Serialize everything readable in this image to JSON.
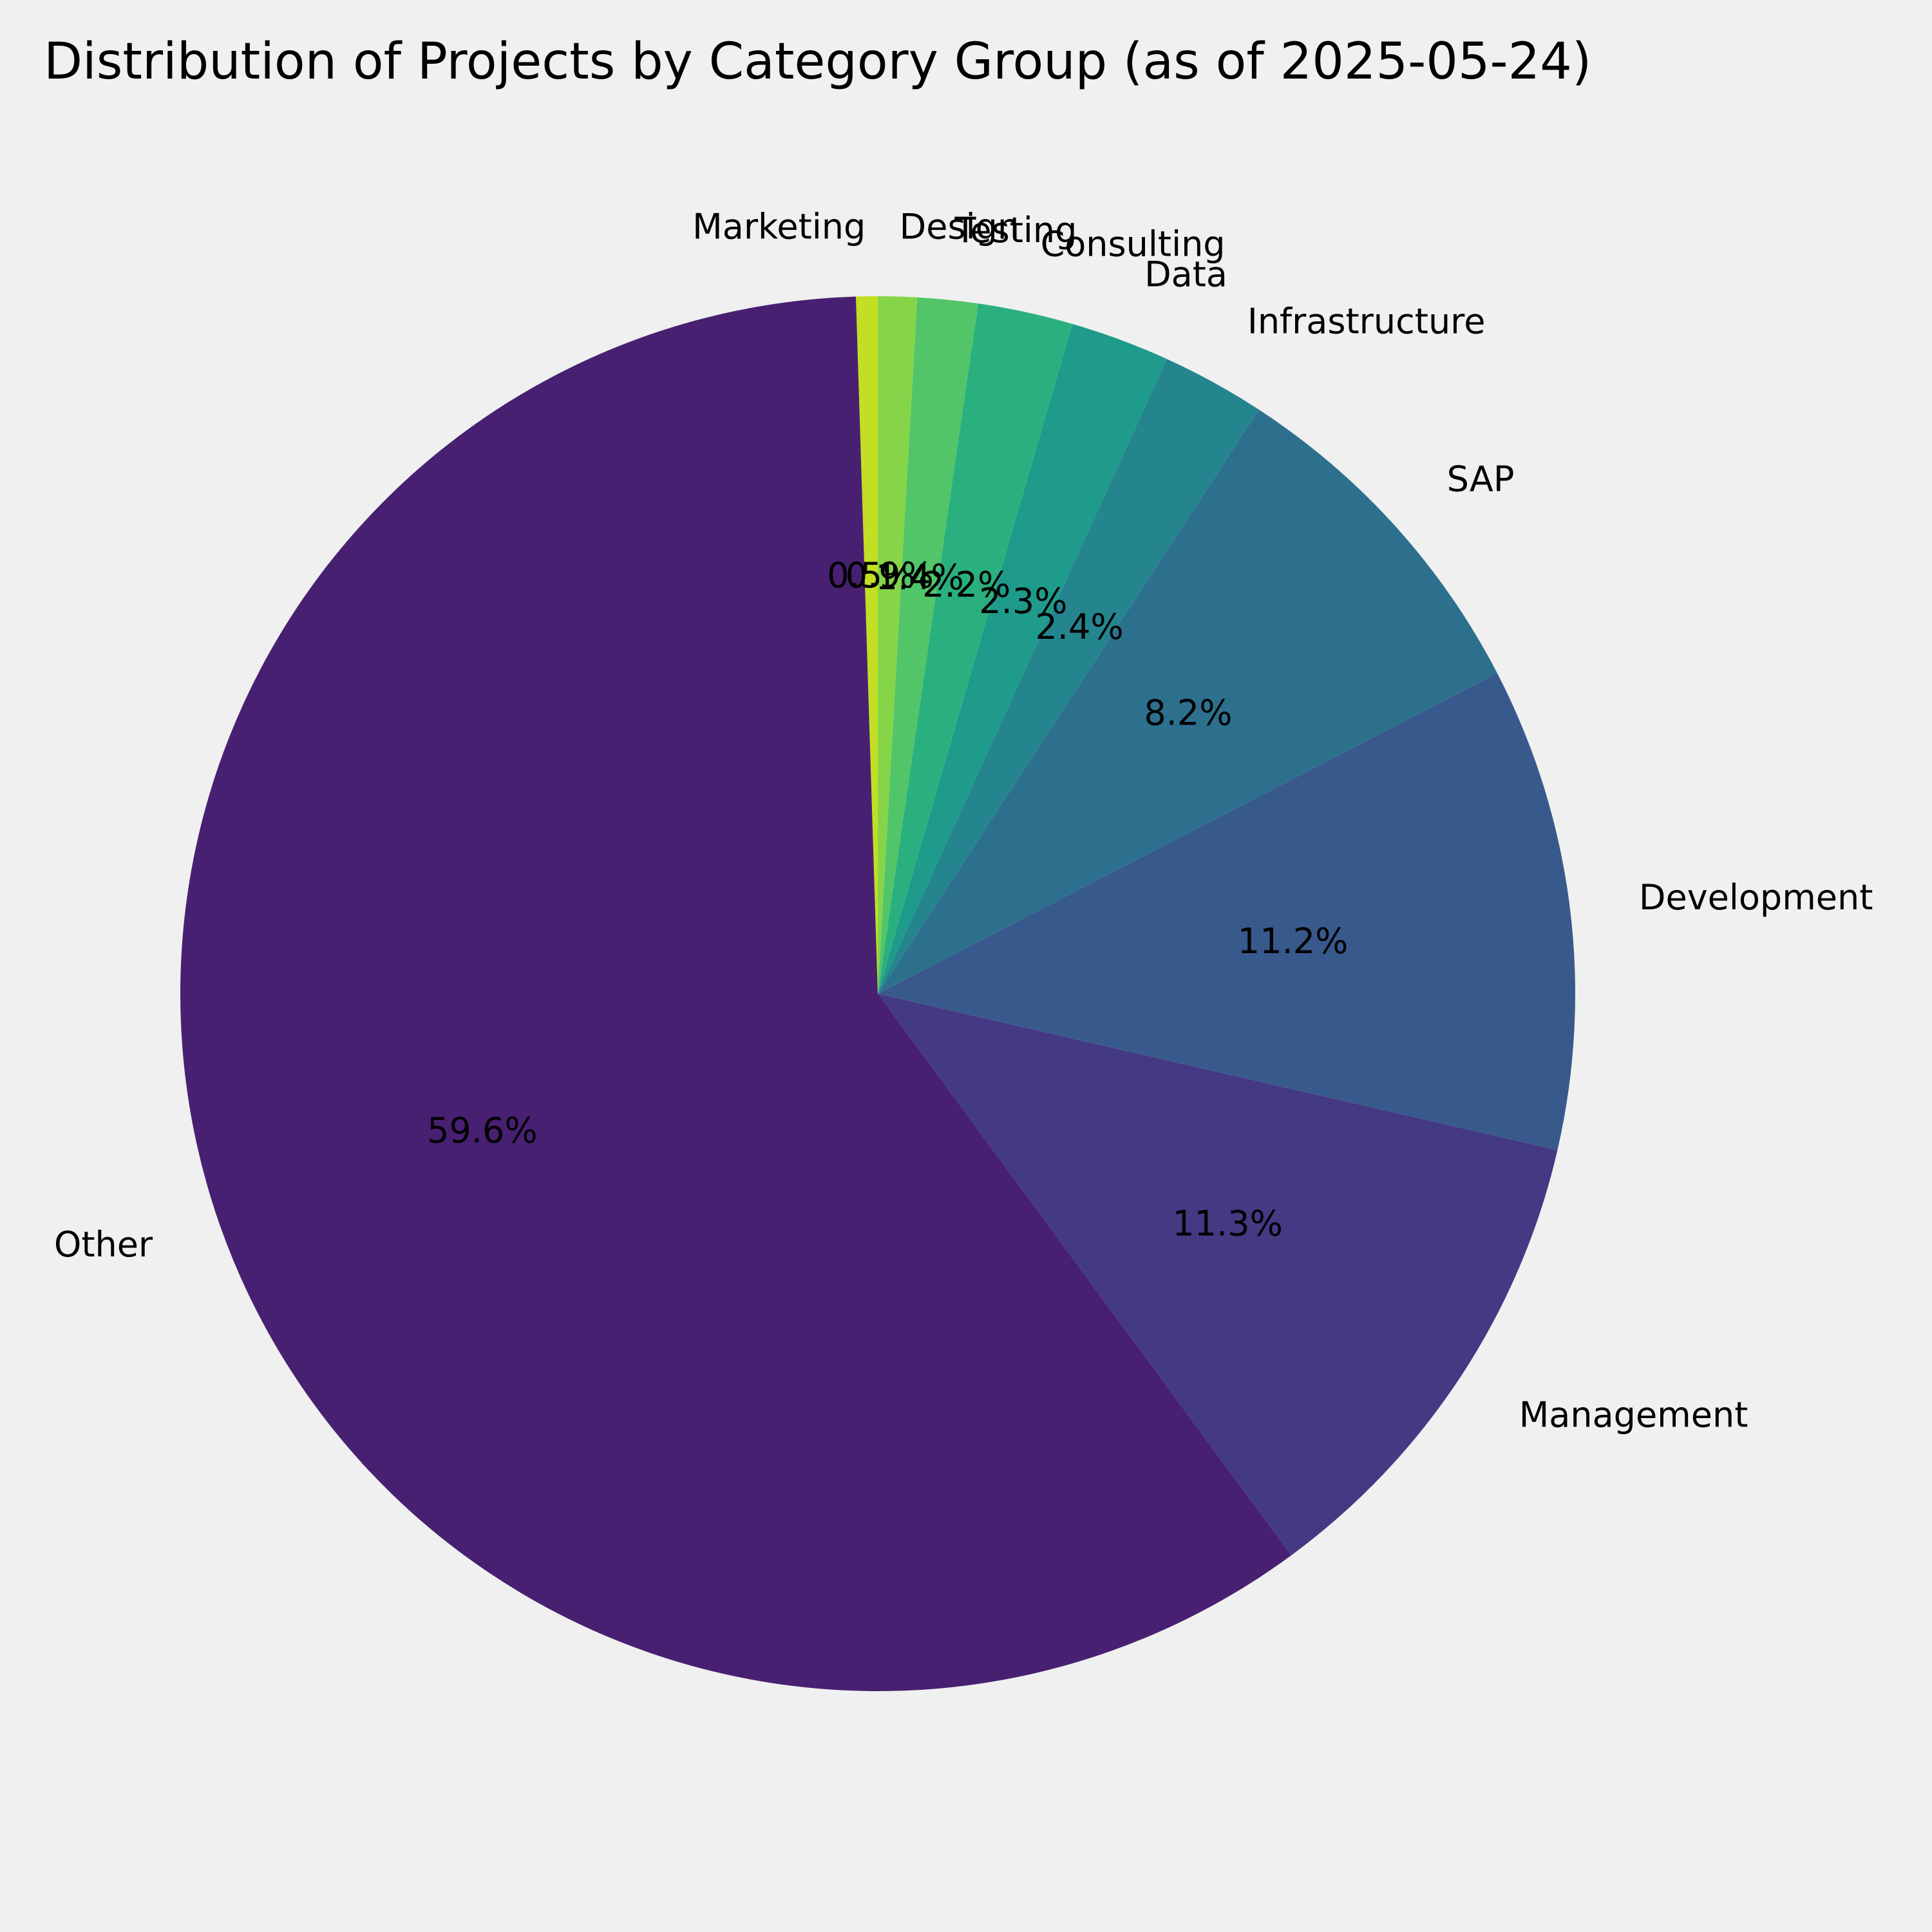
{
  "chart_data": {
    "type": "pie",
    "title": "Distribution of Projects by Category Group (as of 2025-05-24)",
    "start_angle_deg": 90,
    "direction": "counterclockwise",
    "slices": [
      {
        "label": "Marketing",
        "value": 0.5,
        "pct_label": "0.5%",
        "color": "#c2df23"
      },
      {
        "label": "Other",
        "value": 59.6,
        "pct_label": "59.6%",
        "color": "#482071"
      },
      {
        "label": "Management",
        "value": 11.3,
        "pct_label": "11.3%",
        "color": "#443983"
      },
      {
        "label": "Development",
        "value": 11.2,
        "pct_label": "11.2%",
        "color": "#38598c"
      },
      {
        "label": "SAP",
        "value": 8.2,
        "pct_label": "8.2%",
        "color": "#2d708e"
      },
      {
        "label": "Infrastructure",
        "value": 2.4,
        "pct_label": "2.4%",
        "color": "#25858e"
      },
      {
        "label": "Data",
        "value": 2.3,
        "pct_label": "2.3%",
        "color": "#1e9b8a"
      },
      {
        "label": "Consulting",
        "value": 2.2,
        "pct_label": "2.2%",
        "color": "#2ab07f"
      },
      {
        "label": "Testing",
        "value": 1.4,
        "pct_label": "1.4%",
        "color": "#52c569"
      },
      {
        "label": "Design",
        "value": 0.9,
        "pct_label": "0.9%",
        "color": "#86d549"
      }
    ]
  }
}
